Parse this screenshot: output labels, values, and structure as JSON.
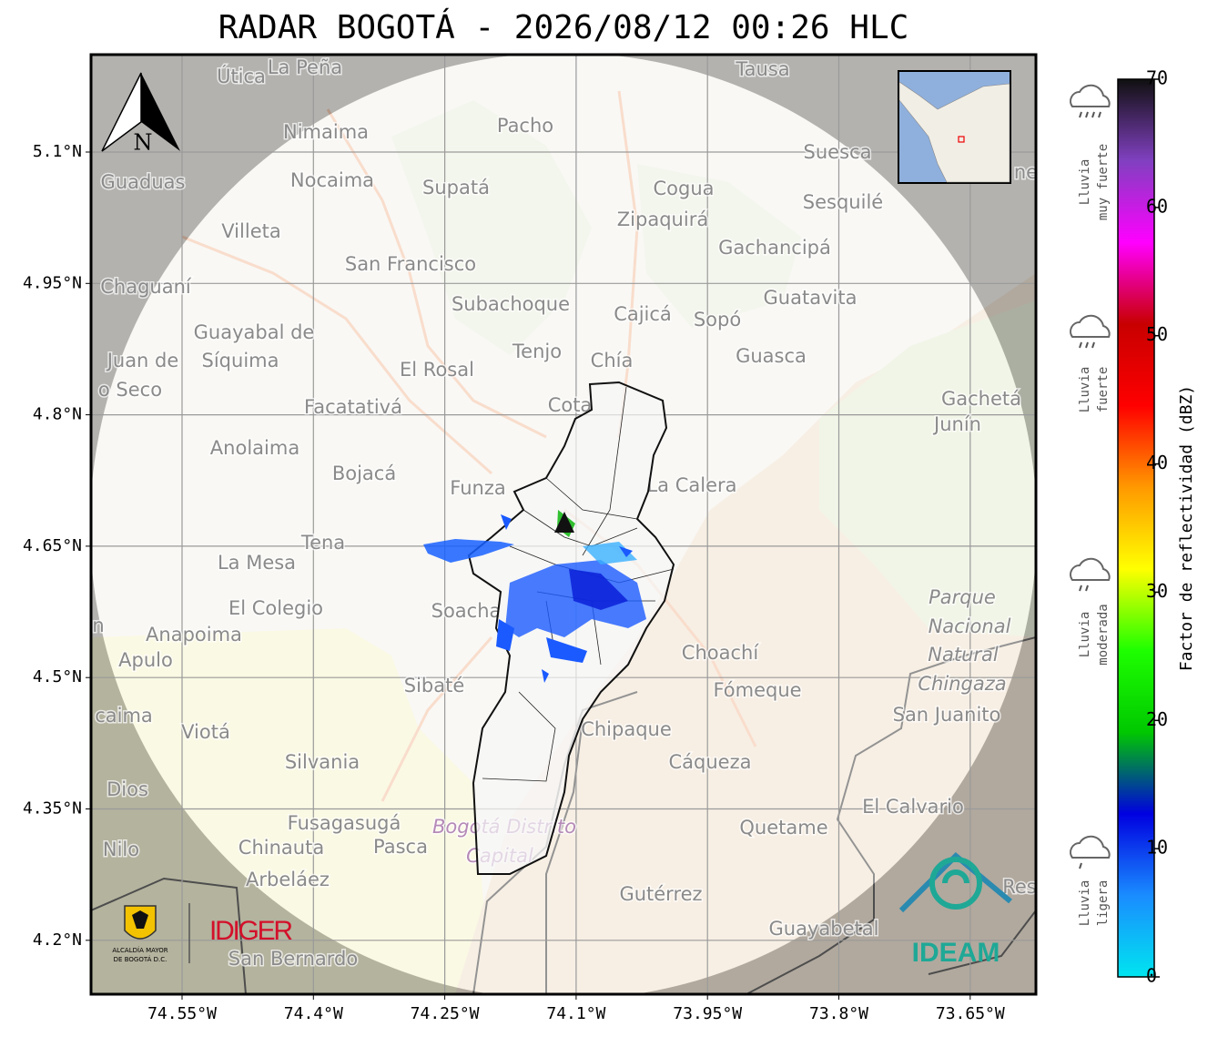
{
  "title": "RADAR BOGOTÁ - 2026/08/12 00:26 HLC",
  "map": {
    "north": "N",
    "x_ticks": [
      {
        "value": -74.55,
        "label": "74.55°W"
      },
      {
        "value": -74.4,
        "label": "74.4°W"
      },
      {
        "value": -74.25,
        "label": "74.25°W"
      },
      {
        "value": -74.1,
        "label": "74.1°W"
      },
      {
        "value": -73.95,
        "label": "73.95°W"
      },
      {
        "value": -73.8,
        "label": "73.8°W"
      },
      {
        "value": -73.65,
        "label": "73.65°W"
      }
    ],
    "y_ticks": [
      {
        "value": 5.1,
        "label": "5.1°N"
      },
      {
        "value": 4.95,
        "label": "4.95°N"
      },
      {
        "value": 4.8,
        "label": "4.8°N"
      },
      {
        "value": 4.65,
        "label": "4.65°N"
      },
      {
        "value": 4.5,
        "label": "4.5°N"
      },
      {
        "value": 4.35,
        "label": "4.35°N"
      },
      {
        "value": 4.2,
        "label": "4.2°N"
      }
    ],
    "places": [
      "Útica",
      "La Peña",
      "Tausa",
      "Pacho",
      "Nimaima",
      "Suesca",
      "Guaduas",
      "Nocaima",
      "Supatá",
      "Cogua",
      "Sesquilé",
      "Zipaquirá",
      "Villeta",
      "Gachancipá",
      "San Francisco",
      "Chaguaní",
      "Guatavita",
      "Subachoque",
      "Cajicá",
      "Sopó",
      "Guayabal de",
      "Síquima",
      "Tenjo",
      "Chía",
      "Guasca",
      "Juan de",
      "o Seco",
      "El Rosal",
      "Gachetá",
      "Junín",
      "Facatativá",
      "Cota",
      "Anolaima",
      "Bojacá",
      "La Calera",
      "Funza",
      "Tena",
      "La Mesa",
      "Parque",
      "Nacional",
      "Natural",
      "Chingaza",
      "Soacha",
      "El Colegio",
      "Anapoima",
      "Apulo",
      "Choachí",
      "Sibaté",
      "Fómeque",
      "San Juanito",
      "caima",
      "Viotá",
      "Chipaque",
      "Silvania",
      "Cáqueza",
      "Dios",
      "El Calvario",
      "Fusagasugá",
      "Bogotá Distrito",
      "Capital",
      "Quetame",
      "Nilo",
      "Chinauta",
      "Pasca",
      "Arbeláez",
      "Res",
      "Gutérrez",
      "Guayabetal",
      "San Bernardo",
      "ne",
      "n"
    ]
  },
  "colorbar": {
    "label": "Factor de reflectividad (dBZ)",
    "lim": [
      0,
      70
    ],
    "ticks": [
      0,
      10,
      20,
      30,
      40,
      50,
      60,
      70
    ],
    "colors": [
      "#00e5f0",
      "#1a8cff",
      "#0000e0",
      "#00c800",
      "#1eff00",
      "#ffff00",
      "#ff9900",
      "#ff0000",
      "#c80000",
      "#ff00ff",
      "#8040c0",
      "#101010"
    ]
  },
  "legend": [
    {
      "lines": [
        "Lluvia",
        "muy fuerte"
      ]
    },
    {
      "lines": [
        "Lluvia",
        "fuerte"
      ]
    },
    {
      "lines": [
        "Lluvia",
        "moderada"
      ]
    },
    {
      "lines": [
        "Lluvia",
        "ligera"
      ]
    }
  ],
  "logos": {
    "alcaldia": [
      "ALCALDÍA MAYOR",
      "DE BOGOTÁ D.C."
    ],
    "idiger": "IDIGER",
    "ideam": "IDEAM"
  }
}
